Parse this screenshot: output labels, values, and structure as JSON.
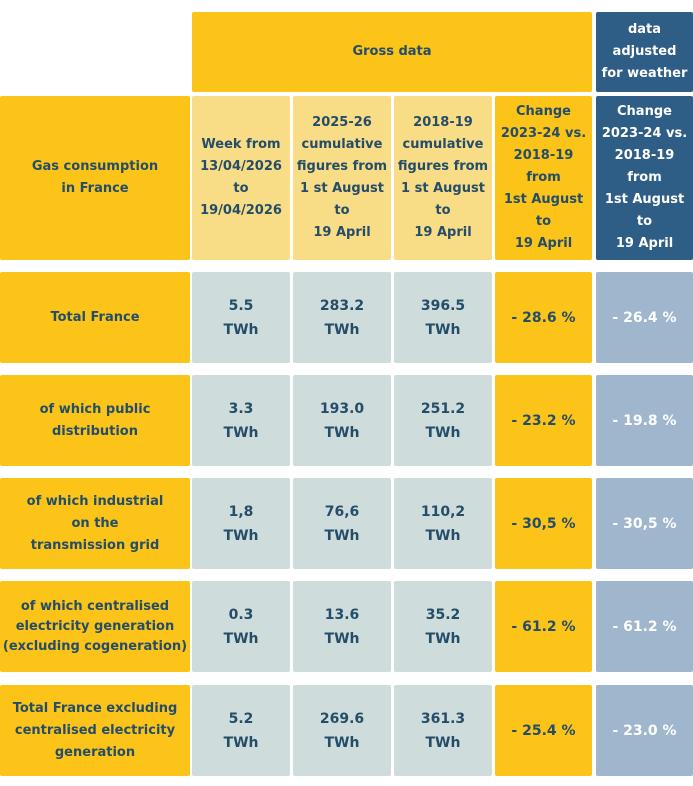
{
  "colors": {
    "gold": "#fcc419",
    "light_gold": "#f8dc86",
    "grey": "#cfdcdc",
    "navy": "#2e5d86",
    "slate": "#a0b6cd",
    "text_dark": "#234d68"
  },
  "header": {
    "gross_data": "Gross data",
    "adjusted": "data\nadjusted\nfor weather",
    "row_label": "Gas consumption\nin France",
    "week": "Week from\n13/04/2026\nto\n19/04/2026",
    "cum_2025": "2025-26\ncumulative\nfigures from\n1 st August to\n19 April",
    "cum_2018": "2018-19\ncumulative\nfigures from\n1 st August to\n19 April",
    "change": "Change\n2023-24 vs.\n2018-19 from\n1st August  to\n19 April",
    "change_adj": "Change\n2023-24 vs.\n2018-19 from\n1st August to\n19 April"
  },
  "rows": [
    {
      "label": "Total France",
      "week": "5.5\nTWh",
      "cum_2025": "283.2\nTWh",
      "cum_2018": "396.5\nTWh",
      "change": "- 28.6 %",
      "change_adj": "- 26.4 %"
    },
    {
      "label": "of which public\ndistribution",
      "week": "3.3\nTWh",
      "cum_2025": "193.0\nTWh",
      "cum_2018": "251.2\nTWh",
      "change": "- 23.2 %",
      "change_adj": "- 19.8 %"
    },
    {
      "label": "of which industrial\non the\ntransmission grid",
      "week": "1,8\nTWh",
      "cum_2025": "76,6\nTWh",
      "cum_2018": "110,2\nTWh",
      "change": "- 30,5 %",
      "change_adj": "- 30,5 %"
    },
    {
      "label": "of which centralised\nelectricity generation\n(excluding cogeneration)",
      "week": "0.3\nTWh",
      "cum_2025": "13.6\nTWh",
      "cum_2018": "35.2\nTWh",
      "change": "- 61.2 %",
      "change_adj": "- 61.2 %"
    },
    {
      "label": "Total France excluding\ncentralised electricity\ngeneration",
      "week": "5.2\nTWh",
      "cum_2025": "269.6\nTWh",
      "cum_2018": "361.3\nTWh",
      "change": "- 25.4 %",
      "change_adj": "- 23.0 %"
    }
  ]
}
